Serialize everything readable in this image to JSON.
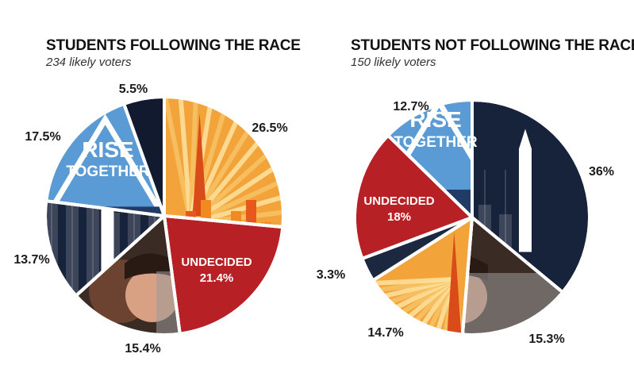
{
  "chart_data": [
    {
      "type": "pie",
      "title": "STUDENTS FOLLOWING THE RACE",
      "subtitle": "234 likely voters",
      "slices": [
        {
          "label": "26.5%",
          "value": 26.5,
          "color": "#f2a33a"
        },
        {
          "label": "UNDECIDED",
          "value_label": "21.4%",
          "value": 21.4,
          "color": "#b72025"
        },
        {
          "label": "15.4%",
          "value": 15.4,
          "color": "#3a2b24"
        },
        {
          "label": "13.7%",
          "value": 13.7,
          "color": "#17223b"
        },
        {
          "label": "17.5%",
          "value": 17.5,
          "color": "#5b9bd5"
        },
        {
          "label": "5.5%",
          "value": 5.5,
          "color": "#111a2e"
        }
      ]
    },
    {
      "type": "pie",
      "title": "STUDENTS NOT FOLLOWING THE RACE",
      "subtitle": "150 likely voters",
      "slices": [
        {
          "label": "36%",
          "value": 36,
          "color": "#17223b"
        },
        {
          "label": "15.3%",
          "value": 15.3,
          "color": "#3a2b24"
        },
        {
          "label": "14.7%",
          "value": 14.7,
          "color": "#f2a33a"
        },
        {
          "label": "3.3%",
          "value": 3.3,
          "color": "#1c2740"
        },
        {
          "label": "UNDECIDED",
          "value_label": "18%",
          "value": 18,
          "color": "#b72025"
        },
        {
          "label": "12.7%",
          "value": 12.7,
          "color": "#5b9bd5"
        }
      ]
    }
  ],
  "illustration": {
    "rise_line1": "RISE",
    "rise_line2": "TOGETHER"
  }
}
